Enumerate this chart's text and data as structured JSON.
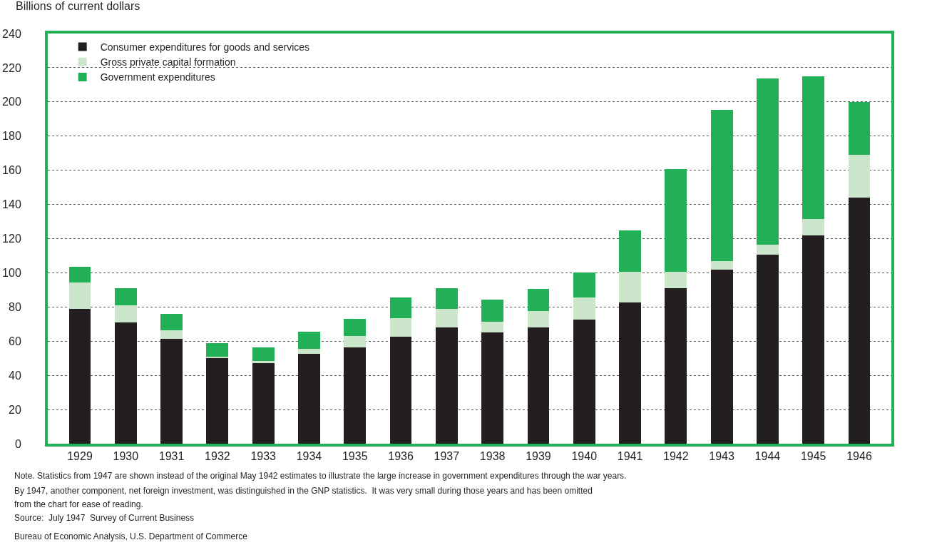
{
  "chart_data": {
    "type": "bar",
    "stacked": true,
    "ylabel": "Billions of current dollars",
    "categories": [
      "1929",
      "1930",
      "1931",
      "1932",
      "1933",
      "1934",
      "1935",
      "1936",
      "1937",
      "1938",
      "1939",
      "1940",
      "1941",
      "1942",
      "1943",
      "1944",
      "1945",
      "1946"
    ],
    "series": [
      {
        "name": "Consumer expenditures for goods and services",
        "color": "#231f20",
        "values": [
          79,
          71,
          61.5,
          50,
          47,
          52.5,
          56.5,
          62.5,
          68,
          65,
          68,
          72.5,
          82.5,
          91,
          102,
          110.5,
          122,
          144
        ]
      },
      {
        "name": "Gross private capital formation",
        "color": "#cce6cc",
        "values": [
          15.5,
          10,
          5,
          1,
          1.5,
          3,
          6.5,
          11,
          11,
          6.5,
          9.5,
          13,
          18,
          9.5,
          5,
          6,
          9.5,
          25
        ]
      },
      {
        "name": "Government expenditures",
        "color": "#22b057",
        "values": [
          9,
          10,
          9.5,
          8,
          8,
          10,
          10,
          12,
          12,
          13,
          13,
          14.5,
          24.5,
          60,
          88.5,
          97,
          83.5,
          31
        ]
      }
    ],
    "ylim": [
      0,
      240
    ],
    "yticks": [
      0,
      20,
      40,
      60,
      80,
      100,
      120,
      140,
      160,
      180,
      200,
      220,
      240
    ],
    "grid": "y",
    "legend": "top left",
    "annotations": [
      "Note. Statistics from 1947 are shown instead of the original May 1942 estimates to illustrate the large increase in government expenditures through the war years.",
      "By 1947, another component, net foreign investment, was distinguished in the GNP statistics.  It was very small during those years and has been omitted",
      "from the chart for ease of reading.",
      "Source:  July 1947  Survey of Current Business",
      "Bureau of Economic Analysis, U.S. Department of Commerce"
    ]
  }
}
